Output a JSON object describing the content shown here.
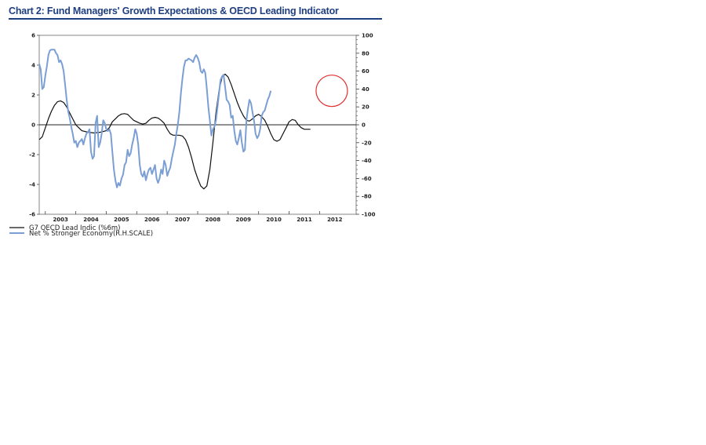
{
  "chart_data": {
    "type": "line",
    "title": "Chart 2: Fund Managers' Growth Expectations & OECD Leading Indicator",
    "x_axis": {
      "labels": [
        "2003",
        "2004",
        "2005",
        "2006",
        "2007",
        "2008",
        "2009",
        "2010",
        "2011",
        "2012"
      ],
      "range": [
        2002.8,
        2013.2
      ]
    },
    "y_left": {
      "range": [
        -6,
        6
      ],
      "ticks": [
        "6",
        "4",
        "2",
        "0",
        "-2",
        "-4",
        "-6"
      ]
    },
    "y_right": {
      "label": "",
      "range": [
        -100,
        100
      ],
      "ticks": [
        "100",
        "80",
        "60",
        "40",
        "20",
        "0",
        "-20",
        "-40",
        "-60",
        "-80",
        "-100"
      ]
    },
    "grid": false,
    "zero_line": true,
    "legend": {
      "placement": "bottom-left"
    },
    "annotation": {
      "type": "circle",
      "color": "#e03030",
      "x": 2012.4,
      "y_right": 38
    },
    "series": [
      {
        "name": "G7 OECD Lead Indic (%6m)",
        "axis": "left",
        "color": "#111111",
        "points": [
          [
            2002.8,
            -1.0
          ],
          [
            2002.9,
            -0.8
          ],
          [
            2003.0,
            -0.2
          ],
          [
            2003.1,
            0.4
          ],
          [
            2003.2,
            0.9
          ],
          [
            2003.3,
            1.3
          ],
          [
            2003.4,
            1.55
          ],
          [
            2003.5,
            1.6
          ],
          [
            2003.6,
            1.5
          ],
          [
            2003.7,
            1.2
          ],
          [
            2003.8,
            0.8
          ],
          [
            2003.9,
            0.4
          ],
          [
            2004.0,
            0.0
          ],
          [
            2004.1,
            -0.2
          ],
          [
            2004.2,
            -0.4
          ],
          [
            2004.4,
            -0.5
          ],
          [
            2004.6,
            -0.55
          ],
          [
            2004.8,
            -0.5
          ],
          [
            2005.0,
            -0.4
          ],
          [
            2005.1,
            -0.2
          ],
          [
            2005.2,
            0.2
          ],
          [
            2005.3,
            0.4
          ],
          [
            2005.4,
            0.6
          ],
          [
            2005.5,
            0.72
          ],
          [
            2005.6,
            0.75
          ],
          [
            2005.7,
            0.7
          ],
          [
            2005.8,
            0.5
          ],
          [
            2005.9,
            0.3
          ],
          [
            2006.0,
            0.2
          ],
          [
            2006.1,
            0.1
          ],
          [
            2006.2,
            0.05
          ],
          [
            2006.3,
            0.1
          ],
          [
            2006.4,
            0.3
          ],
          [
            2006.5,
            0.45
          ],
          [
            2006.6,
            0.5
          ],
          [
            2006.7,
            0.45
          ],
          [
            2006.8,
            0.3
          ],
          [
            2006.9,
            0.1
          ],
          [
            2007.0,
            -0.3
          ],
          [
            2007.1,
            -0.6
          ],
          [
            2007.2,
            -0.7
          ],
          [
            2007.3,
            -0.7
          ],
          [
            2007.4,
            -0.7
          ],
          [
            2007.5,
            -0.75
          ],
          [
            2007.6,
            -1.0
          ],
          [
            2007.7,
            -1.5
          ],
          [
            2007.8,
            -2.2
          ],
          [
            2007.9,
            -3.0
          ],
          [
            2008.0,
            -3.6
          ],
          [
            2008.1,
            -4.1
          ],
          [
            2008.2,
            -4.3
          ],
          [
            2008.3,
            -4.1
          ],
          [
            2008.4,
            -3.0
          ],
          [
            2008.5,
            -1.2
          ],
          [
            2008.6,
            0.8
          ],
          [
            2008.7,
            2.3
          ],
          [
            2008.8,
            3.2
          ],
          [
            2008.9,
            3.4
          ],
          [
            2009.0,
            3.2
          ],
          [
            2009.1,
            2.7
          ],
          [
            2009.2,
            2.1
          ],
          [
            2009.3,
            1.5
          ],
          [
            2009.4,
            1.0
          ],
          [
            2009.5,
            0.6
          ],
          [
            2009.6,
            0.3
          ],
          [
            2009.7,
            0.25
          ],
          [
            2009.8,
            0.4
          ],
          [
            2009.9,
            0.6
          ],
          [
            2010.0,
            0.7
          ],
          [
            2010.1,
            0.55
          ],
          [
            2010.2,
            0.3
          ],
          [
            2010.3,
            -0.1
          ],
          [
            2010.4,
            -0.6
          ],
          [
            2010.5,
            -1.0
          ],
          [
            2010.6,
            -1.1
          ],
          [
            2010.7,
            -1.0
          ],
          [
            2010.8,
            -0.6
          ],
          [
            2010.9,
            -0.2
          ],
          [
            2011.0,
            0.2
          ],
          [
            2011.1,
            0.35
          ],
          [
            2011.2,
            0.3
          ],
          [
            2011.3,
            0.0
          ],
          [
            2011.4,
            -0.2
          ],
          [
            2011.5,
            -0.3
          ],
          [
            2011.6,
            -0.3
          ],
          [
            2011.7,
            -0.3
          ]
        ]
      },
      {
        "name": "Net % Stronger Economy(R.H.SCALE)",
        "axis": "right",
        "color": "#7b9fd4",
        "points": [
          [
            2002.8,
            68
          ],
          [
            2002.85,
            62
          ],
          [
            2002.9,
            40
          ],
          [
            2002.95,
            42
          ],
          [
            2003.0,
            55
          ],
          [
            2003.05,
            65
          ],
          [
            2003.1,
            78
          ],
          [
            2003.15,
            83
          ],
          [
            2003.2,
            84
          ],
          [
            2003.25,
            84
          ],
          [
            2003.3,
            84
          ],
          [
            2003.35,
            80
          ],
          [
            2003.4,
            78
          ],
          [
            2003.45,
            70
          ],
          [
            2003.5,
            72
          ],
          [
            2003.55,
            68
          ],
          [
            2003.6,
            60
          ],
          [
            2003.65,
            45
          ],
          [
            2003.7,
            28
          ],
          [
            2003.75,
            15
          ],
          [
            2003.8,
            8
          ],
          [
            2003.85,
            -2
          ],
          [
            2003.9,
            -10
          ],
          [
            2003.95,
            -20
          ],
          [
            2004.0,
            -18
          ],
          [
            2004.05,
            -25
          ],
          [
            2004.1,
            -20
          ],
          [
            2004.15,
            -18
          ],
          [
            2004.2,
            -16
          ],
          [
            2004.25,
            -22
          ],
          [
            2004.3,
            -15
          ],
          [
            2004.35,
            -10
          ],
          [
            2004.4,
            -8
          ],
          [
            2004.45,
            -5
          ],
          [
            2004.5,
            -30
          ],
          [
            2004.55,
            -38
          ],
          [
            2004.6,
            -35
          ],
          [
            2004.65,
            2
          ],
          [
            2004.7,
            10
          ],
          [
            2004.75,
            -25
          ],
          [
            2004.8,
            -20
          ],
          [
            2004.85,
            -10
          ],
          [
            2004.9,
            5
          ],
          [
            2004.95,
            2
          ],
          [
            2005.0,
            -5
          ],
          [
            2005.05,
            -7
          ],
          [
            2005.1,
            -5
          ],
          [
            2005.15,
            -10
          ],
          [
            2005.2,
            -30
          ],
          [
            2005.25,
            -50
          ],
          [
            2005.3,
            -62
          ],
          [
            2005.35,
            -70
          ],
          [
            2005.4,
            -65
          ],
          [
            2005.45,
            -68
          ],
          [
            2005.5,
            -60
          ],
          [
            2005.55,
            -56
          ],
          [
            2005.6,
            -45
          ],
          [
            2005.65,
            -42
          ],
          [
            2005.7,
            -28
          ],
          [
            2005.75,
            -35
          ],
          [
            2005.8,
            -32
          ],
          [
            2005.85,
            -22
          ],
          [
            2005.9,
            -15
          ],
          [
            2005.95,
            -5
          ],
          [
            2006.0,
            -10
          ],
          [
            2006.05,
            -22
          ],
          [
            2006.1,
            -45
          ],
          [
            2006.15,
            -55
          ],
          [
            2006.2,
            -58
          ],
          [
            2006.25,
            -52
          ],
          [
            2006.3,
            -62
          ],
          [
            2006.35,
            -55
          ],
          [
            2006.4,
            -50
          ],
          [
            2006.45,
            -48
          ],
          [
            2006.5,
            -55
          ],
          [
            2006.55,
            -50
          ],
          [
            2006.6,
            -45
          ],
          [
            2006.65,
            -60
          ],
          [
            2006.7,
            -65
          ],
          [
            2006.75,
            -60
          ],
          [
            2006.8,
            -50
          ],
          [
            2006.85,
            -55
          ],
          [
            2006.9,
            -40
          ],
          [
            2006.95,
            -45
          ],
          [
            2007.0,
            -57
          ],
          [
            2007.05,
            -52
          ],
          [
            2007.1,
            -48
          ],
          [
            2007.15,
            -38
          ],
          [
            2007.2,
            -30
          ],
          [
            2007.25,
            -22
          ],
          [
            2007.3,
            -10
          ],
          [
            2007.35,
            0
          ],
          [
            2007.4,
            15
          ],
          [
            2007.45,
            35
          ],
          [
            2007.5,
            52
          ],
          [
            2007.55,
            65
          ],
          [
            2007.6,
            72
          ],
          [
            2007.65,
            72
          ],
          [
            2007.7,
            74
          ],
          [
            2007.75,
            73
          ],
          [
            2007.8,
            72
          ],
          [
            2007.85,
            70
          ],
          [
            2007.9,
            75
          ],
          [
            2007.95,
            78
          ],
          [
            2008.0,
            75
          ],
          [
            2008.05,
            70
          ],
          [
            2008.1,
            60
          ],
          [
            2008.15,
            58
          ],
          [
            2008.2,
            62
          ],
          [
            2008.25,
            58
          ],
          [
            2008.3,
            40
          ],
          [
            2008.35,
            20
          ],
          [
            2008.4,
            5
          ],
          [
            2008.45,
            -12
          ],
          [
            2008.5,
            -5
          ],
          [
            2008.55,
            -2
          ],
          [
            2008.6,
            5
          ],
          [
            2008.65,
            20
          ],
          [
            2008.7,
            35
          ],
          [
            2008.75,
            50
          ],
          [
            2008.8,
            54
          ],
          [
            2008.85,
            56
          ],
          [
            2008.9,
            42
          ],
          [
            2008.95,
            28
          ],
          [
            2009.0,
            26
          ],
          [
            2009.05,
            22
          ],
          [
            2009.1,
            8
          ],
          [
            2009.15,
            10
          ],
          [
            2009.2,
            -6
          ],
          [
            2009.25,
            -18
          ],
          [
            2009.3,
            -22
          ],
          [
            2009.35,
            -15
          ],
          [
            2009.4,
            -6
          ],
          [
            2009.45,
            -20
          ],
          [
            2009.5,
            -30
          ],
          [
            2009.55,
            -28
          ],
          [
            2009.6,
            5
          ],
          [
            2009.65,
            18
          ],
          [
            2009.7,
            28
          ],
          [
            2009.75,
            24
          ],
          [
            2009.8,
            14
          ],
          [
            2009.85,
            4
          ],
          [
            2009.9,
            -10
          ],
          [
            2009.95,
            -15
          ],
          [
            2010.0,
            -12
          ],
          [
            2010.05,
            -5
          ],
          [
            2010.1,
            10
          ],
          [
            2010.15,
            14
          ],
          [
            2010.2,
            16
          ],
          [
            2010.25,
            22
          ],
          [
            2010.3,
            28
          ],
          [
            2010.35,
            32
          ],
          [
            2010.4,
            38
          ]
        ]
      }
    ]
  }
}
